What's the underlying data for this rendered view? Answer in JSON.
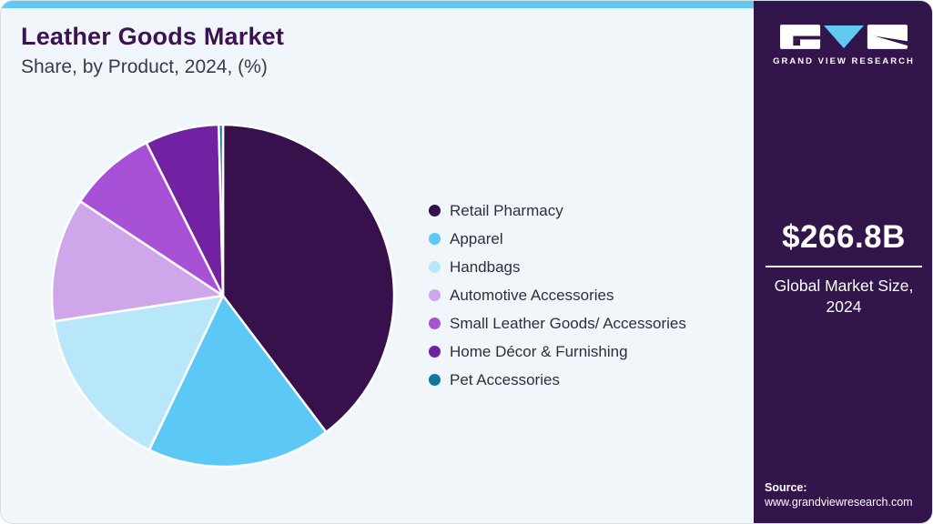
{
  "header": {
    "title": "Leather Goods Market",
    "subtitle": "Share, by Product, 2024, (%)"
  },
  "chart_data": {
    "type": "pie",
    "title": "Leather Goods Market Share, by Product, 2024, (%)",
    "start_angle_deg": 0,
    "direction": "clockwise",
    "legend_position": "right",
    "slices": [
      {
        "label": "Retail Pharmacy",
        "value_pct": 39.7,
        "color": "#36114B"
      },
      {
        "label": "Apparel",
        "value_pct": 17.4,
        "color": "#5BC8F5"
      },
      {
        "label": "Handbags",
        "value_pct": 15.5,
        "color": "#B9E7FA"
      },
      {
        "label": "Automotive Accessories",
        "value_pct": 11.7,
        "color": "#D0A6EA"
      },
      {
        "label": "Small Leather Goods/ Accessories",
        "value_pct": 8.3,
        "color": "#A751D6"
      },
      {
        "label": "Home Décor & Furnishing",
        "value_pct": 7.0,
        "color": "#7122A3"
      },
      {
        "label": "Pet Accessories",
        "value_pct": 0.4,
        "color": "#0F7A9E"
      }
    ]
  },
  "sidebar": {
    "brand": {
      "name": "GRAND VIEW RESEARCH"
    },
    "market_size": {
      "value": "$266.8B",
      "caption": "Global Market Size, 2024"
    },
    "source": {
      "label": "Source:",
      "url": "www.grandviewresearch.com"
    }
  },
  "colors": {
    "accent_blue": "#62C9F2",
    "sidebar_bg": "#32154A",
    "title_purple": "#3D1152",
    "panel_bg": "#F1F6FB"
  }
}
